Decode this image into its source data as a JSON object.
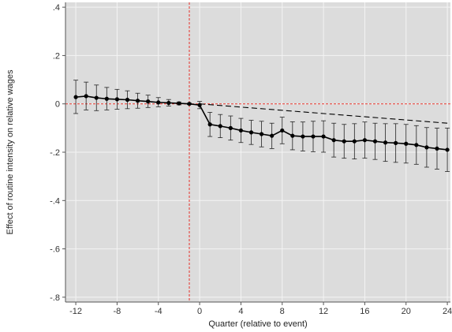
{
  "chart_data": {
    "type": "line",
    "title": "",
    "xlabel": "Quarter (relative to event)",
    "ylabel": "Effect of routine intensity on relative wages",
    "xlim": [
      -13,
      24.3
    ],
    "ylim": [
      -0.82,
      0.42
    ],
    "x_ticks": [
      -12,
      -8,
      -4,
      0,
      4,
      8,
      12,
      16,
      20,
      24
    ],
    "x_tick_labels": [
      "-12",
      "-8",
      "-4",
      "0",
      "4",
      "8",
      "12",
      "16",
      "20",
      "24"
    ],
    "y_ticks": [
      0.4,
      0.2,
      0,
      -0.2,
      -0.4,
      -0.6,
      -0.8
    ],
    "y_tick_labels": [
      ".4",
      ".2",
      "0",
      "-.2",
      "-.4",
      "-.6",
      "-.8"
    ],
    "grid": true,
    "background": "#dcdcdc",
    "reference_lines": {
      "vertical_x": -1,
      "horizontal_y": 0,
      "color": "#e8322b",
      "style": "dashed"
    },
    "trend_line": {
      "style": "dashed",
      "color": "#000000",
      "points": [
        [
          0,
          0
        ],
        [
          24,
          -0.08
        ]
      ]
    },
    "series": [
      {
        "color": "#000000",
        "x": [
          -12,
          -11,
          -10,
          -9,
          -8,
          -7,
          -6,
          -5,
          -4,
          -3,
          -2,
          -1,
          0,
          1,
          2,
          3,
          4,
          5,
          6,
          7,
          8,
          9,
          10,
          11,
          12,
          13,
          14,
          15,
          16,
          17,
          18,
          19,
          20,
          21,
          22,
          23,
          24
        ],
        "y": [
          0.028,
          0.032,
          0.025,
          0.021,
          0.019,
          0.017,
          0.013,
          0.01,
          0.006,
          0.004,
          0.002,
          0.0,
          -0.005,
          -0.085,
          -0.092,
          -0.1,
          -0.11,
          -0.118,
          -0.125,
          -0.132,
          -0.11,
          -0.132,
          -0.135,
          -0.135,
          -0.135,
          -0.15,
          -0.155,
          -0.155,
          -0.15,
          -0.155,
          -0.16,
          -0.162,
          -0.165,
          -0.17,
          -0.18,
          -0.185,
          -0.19
        ],
        "ci_low": [
          -0.04,
          -0.025,
          -0.028,
          -0.025,
          -0.022,
          -0.02,
          -0.018,
          -0.015,
          -0.012,
          -0.009,
          -0.004,
          -0.003,
          -0.02,
          -0.135,
          -0.14,
          -0.15,
          -0.16,
          -0.168,
          -0.178,
          -0.185,
          -0.165,
          -0.19,
          -0.195,
          -0.198,
          -0.2,
          -0.22,
          -0.225,
          -0.228,
          -0.225,
          -0.23,
          -0.238,
          -0.242,
          -0.245,
          -0.25,
          -0.262,
          -0.27,
          -0.28
        ],
        "ci_high": [
          0.098,
          0.09,
          0.078,
          0.068,
          0.06,
          0.054,
          0.044,
          0.036,
          0.026,
          0.018,
          0.008,
          0.003,
          0.01,
          -0.035,
          -0.044,
          -0.05,
          -0.06,
          -0.068,
          -0.072,
          -0.08,
          -0.055,
          -0.074,
          -0.075,
          -0.072,
          -0.07,
          -0.08,
          -0.085,
          -0.082,
          -0.075,
          -0.08,
          -0.082,
          -0.082,
          -0.085,
          -0.09,
          -0.098,
          -0.1,
          -0.1
        ]
      }
    ]
  }
}
